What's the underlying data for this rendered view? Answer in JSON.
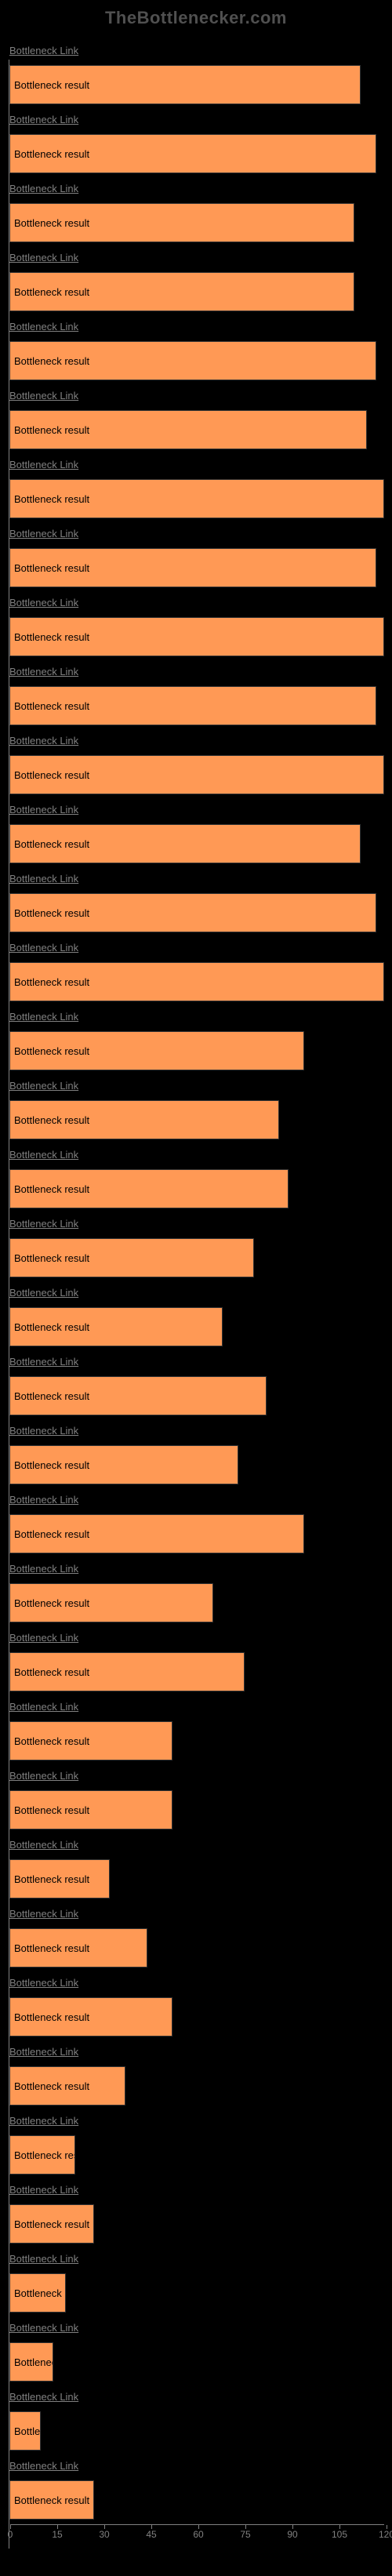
{
  "watermark": "TheBottlenecker.com",
  "chart": {
    "type": "bar",
    "bar_color": "#ff9955",
    "bar_border_color": "#333333",
    "background_color": "#000000",
    "axis_color": "#808080",
    "label_color": "#808080",
    "label_above_color": "#808080",
    "bar_text_color": "#000000",
    "bar_label": "Bottleneck result",
    "link_label": "Bottleneck Link",
    "max_width": 480,
    "bars": [
      {
        "value": 112
      },
      {
        "value": 117
      },
      {
        "value": 110
      },
      {
        "value": 110
      },
      {
        "value": 117
      },
      {
        "value": 114
      },
      {
        "value": 120
      },
      {
        "value": 117
      },
      {
        "value": 120
      },
      {
        "value": 117
      },
      {
        "value": 120
      },
      {
        "value": 112
      },
      {
        "value": 117
      },
      {
        "value": 120
      },
      {
        "value": 94
      },
      {
        "value": 86
      },
      {
        "value": 89
      },
      {
        "value": 78
      },
      {
        "value": 68
      },
      {
        "value": 82
      },
      {
        "value": 73
      },
      {
        "value": 94
      },
      {
        "value": 65
      },
      {
        "value": 75
      },
      {
        "value": 52
      },
      {
        "value": 52
      },
      {
        "value": 32
      },
      {
        "value": 44
      },
      {
        "value": 52
      },
      {
        "value": 37
      },
      {
        "value": 21
      },
      {
        "value": 27
      },
      {
        "value": 18
      },
      {
        "value": 14
      },
      {
        "value": 10
      },
      {
        "value": 27
      }
    ],
    "x_axis": {
      "min": 0,
      "max": 120,
      "ticks": [
        0,
        15,
        30,
        45,
        60,
        75,
        90,
        105,
        120
      ]
    }
  }
}
